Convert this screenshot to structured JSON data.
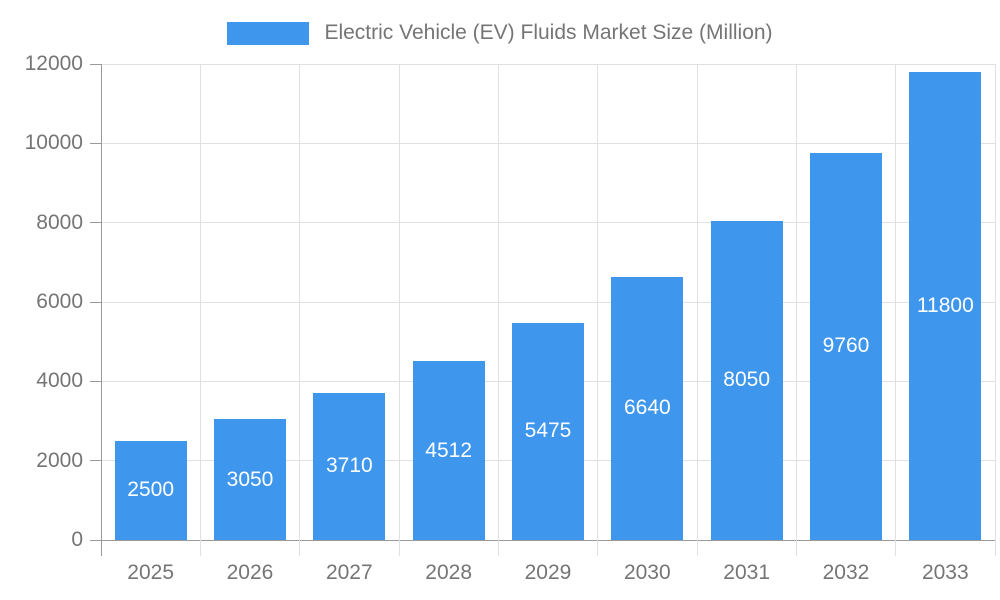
{
  "legend": {
    "label": "Electric Vehicle (EV) Fluids Market Size (Million)"
  },
  "chart_data": {
    "type": "bar",
    "title": "Electric Vehicle (EV) Fluids Market Size (Million)",
    "categories": [
      "2025",
      "2026",
      "2027",
      "2028",
      "2029",
      "2030",
      "2031",
      "2032",
      "2033"
    ],
    "values": [
      2500,
      3050,
      3710,
      4512,
      5475,
      6640,
      8050,
      9760,
      11800
    ],
    "series": [
      {
        "name": "Electric Vehicle (EV) Fluids Market Size (Million)",
        "values": [
          2500,
          3050,
          3710,
          4512,
          5475,
          6640,
          8050,
          9760,
          11800
        ]
      }
    ],
    "xlabel": "",
    "ylabel": "",
    "ylim": [
      0,
      12000
    ],
    "yticks": [
      0,
      2000,
      4000,
      6000,
      8000,
      10000,
      12000
    ],
    "grid": true,
    "legend_position": "top-center",
    "data_label_position": "inside-center"
  },
  "colors": {
    "bar": "#3E96ED",
    "text": "#757575",
    "axis": "#9a9a9a",
    "grid": "#e0e0e0",
    "data_label": "#ffffff",
    "background": "#ffffff"
  }
}
